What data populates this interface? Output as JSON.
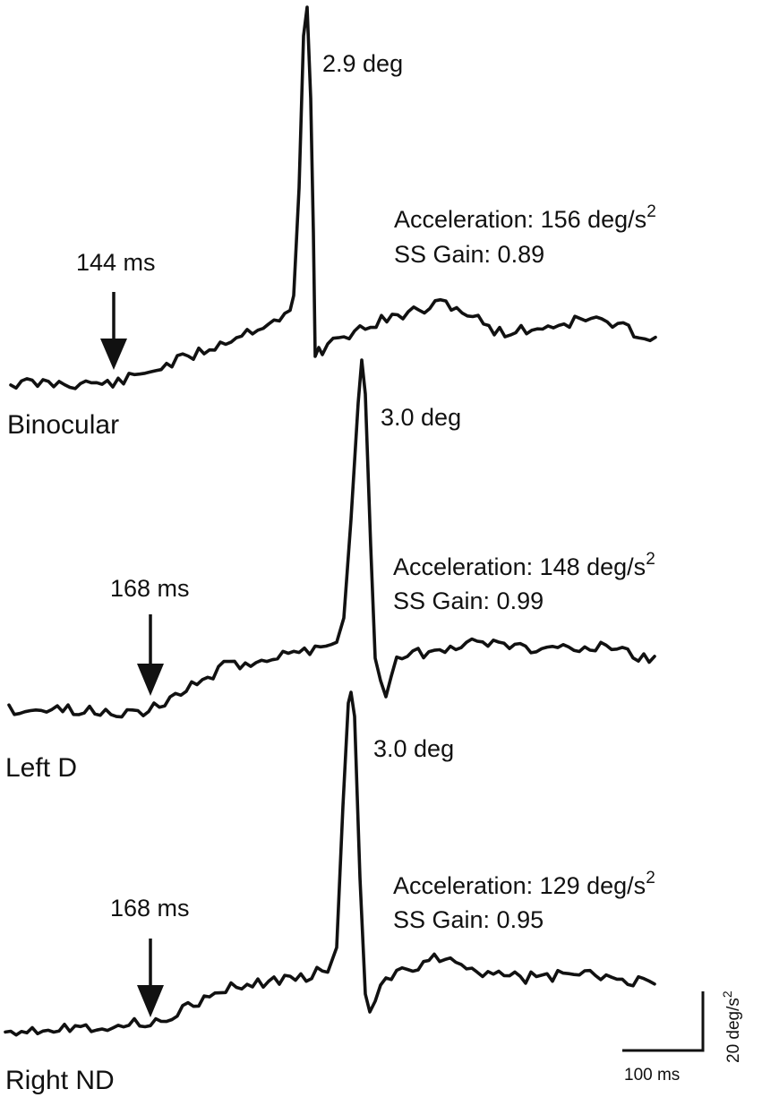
{
  "chart_data": [
    {
      "type": "line",
      "trace_label": "Binocular",
      "onset_label": "144 ms",
      "onset_ms": 144,
      "peak_label": "2.9 deg",
      "acceleration_text": "Acceleration: 156 deg/s",
      "acceleration_exponent": "2",
      "gain_text": "SS Gain: 0.89",
      "acceleration": 156,
      "ss_gain": 0.89,
      "saccade_amplitude_deg": 2.9
    },
    {
      "type": "line",
      "trace_label": "Left D",
      "onset_label": "168 ms",
      "onset_ms": 168,
      "peak_label": "3.0 deg",
      "acceleration_text": "Acceleration: 148 deg/s",
      "acceleration_exponent": "2",
      "gain_text": "SS Gain: 0.99",
      "acceleration": 148,
      "ss_gain": 0.99,
      "saccade_amplitude_deg": 3.0
    },
    {
      "type": "line",
      "trace_label": "Right ND",
      "onset_label": "168 ms",
      "onset_ms": 168,
      "peak_label": "3.0 deg",
      "acceleration_text": "Acceleration: 129 deg/s",
      "acceleration_exponent": "2",
      "gain_text": "SS Gain: 0.95",
      "acceleration": 129,
      "ss_gain": 0.95,
      "saccade_amplitude_deg": 3.0
    }
  ],
  "scale_bar": {
    "time_label": "100 ms",
    "time_ms": 100,
    "accel_label": "20 deg/s",
    "accel_exponent": "2",
    "accel_value": 20
  },
  "colors": {
    "trace": "#111111",
    "background": "#ffffff"
  }
}
